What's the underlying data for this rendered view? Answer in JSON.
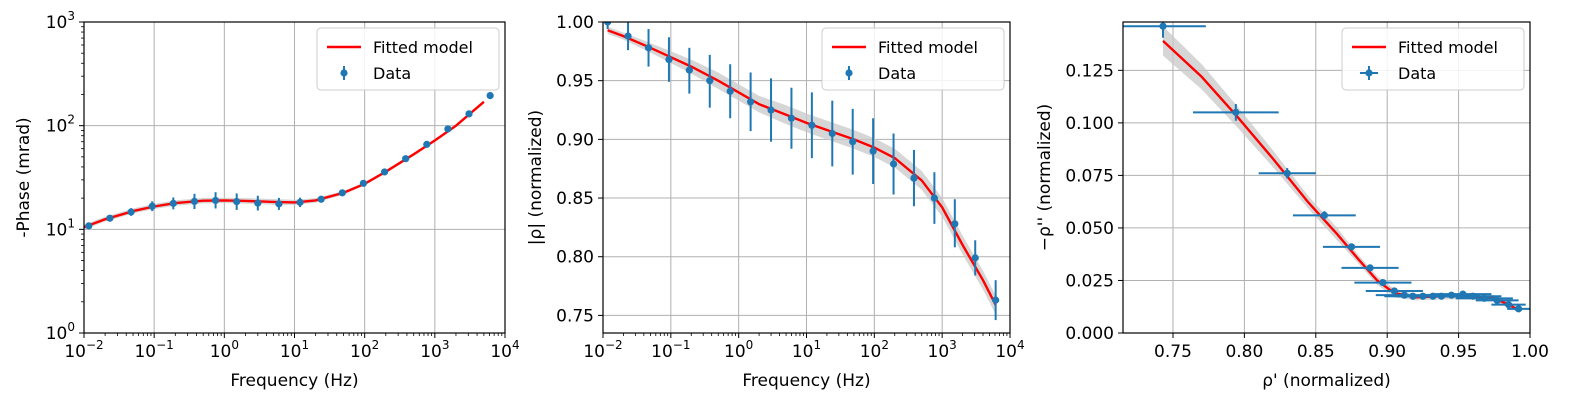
{
  "colors": {
    "model": "#ff0000",
    "data": "#1f77b4",
    "band": "#c8c8c8",
    "grid": "#b0b0b0"
  },
  "chart_data": [
    {
      "type": "line",
      "xlabel": "Frequency (Hz)",
      "ylabel": "-Phase (mrad)",
      "xscale": "log",
      "yscale": "log",
      "xlim": [
        0.01,
        10000
      ],
      "ylim": [
        1,
        1000
      ],
      "xticks": [
        {
          "v": 0.01,
          "base": "10",
          "exp": "−2"
        },
        {
          "v": 0.1,
          "base": "10",
          "exp": "−1"
        },
        {
          "v": 1,
          "base": "10",
          "exp": "0"
        },
        {
          "v": 10,
          "base": "10",
          "exp": "1"
        },
        {
          "v": 100,
          "base": "10",
          "exp": "2"
        },
        {
          "v": 1000,
          "base": "10",
          "exp": "3"
        },
        {
          "v": 10000,
          "base": "10",
          "exp": "4"
        }
      ],
      "yticks": [
        {
          "v": 1,
          "base": "10",
          "exp": "0"
        },
        {
          "v": 10,
          "base": "10",
          "exp": "1"
        },
        {
          "v": 100,
          "base": "10",
          "exp": "2"
        },
        {
          "v": 1000,
          "base": "10",
          "exp": "3"
        }
      ],
      "grid": true,
      "legend_position": "top-right",
      "legend": [
        "Fitted model",
        "Data"
      ],
      "series": [
        {
          "name": "Fitted model",
          "kind": "line",
          "x": [
            0.01,
            0.02,
            0.05,
            0.1,
            0.2,
            0.5,
            1,
            2,
            5,
            10,
            20,
            50,
            100,
            200,
            500,
            1000,
            2000,
            5000
          ],
          "y": [
            10.5,
            12.5,
            15,
            16.6,
            17.9,
            18.9,
            19.0,
            18.8,
            18.4,
            18.2,
            19.0,
            22.5,
            27.5,
            36,
            53,
            72,
            100,
            170
          ],
          "band_lo": [
            9.9,
            11.9,
            14.2,
            15.7,
            16.9,
            17.8,
            17.9,
            17.7,
            17.3,
            17.2,
            18.1,
            21.6,
            26.6,
            34.8,
            51.5,
            70,
            97,
            165
          ],
          "band_hi": [
            11.1,
            13.2,
            15.9,
            17.6,
            19.0,
            20.1,
            20.2,
            20.0,
            19.6,
            19.3,
            20.0,
            23.5,
            28.5,
            37.3,
            54.5,
            74,
            103,
            175
          ]
        },
        {
          "name": "Data",
          "kind": "errorbar",
          "x": [
            0.0117,
            0.0234,
            0.0469,
            0.0938,
            0.1875,
            0.375,
            0.75,
            1.5,
            3,
            6,
            12,
            24,
            48,
            96,
            192,
            384,
            768,
            1536,
            3072,
            6144
          ],
          "y": [
            10.8,
            12.8,
            14.7,
            16.7,
            17.8,
            18.6,
            19.0,
            18.5,
            17.9,
            17.6,
            18.2,
            19.5,
            22.5,
            27.8,
            35.8,
            48,
            66,
            93,
            130,
            195
          ],
          "ylo": [
            10.2,
            12.1,
            13.5,
            15.0,
            15.6,
            15.7,
            15.9,
            15.4,
            15.2,
            15.4,
            16.4,
            18.6,
            21.8,
            27.0,
            34.8,
            46.8,
            64.5,
            91,
            127,
            191
          ],
          "yhi": [
            11.4,
            13.5,
            16.0,
            18.6,
            20.3,
            22.0,
            22.8,
            22.2,
            21.1,
            20.1,
            20.2,
            20.5,
            23.3,
            28.6,
            36.8,
            49.2,
            67.5,
            95,
            133,
            199
          ]
        }
      ]
    },
    {
      "type": "line",
      "xlabel": "Frequency (Hz)",
      "ylabel": "|ρ| (normalized)",
      "xscale": "log",
      "yscale": "linear",
      "xlim": [
        0.01,
        10000
      ],
      "ylim": [
        0.735,
        1.0
      ],
      "xticks": [
        {
          "v": 0.01,
          "base": "10",
          "exp": "−2"
        },
        {
          "v": 0.1,
          "base": "10",
          "exp": "−1"
        },
        {
          "v": 1,
          "base": "10",
          "exp": "0"
        },
        {
          "v": 10,
          "base": "10",
          "exp": "1"
        },
        {
          "v": 100,
          "base": "10",
          "exp": "2"
        },
        {
          "v": 1000,
          "base": "10",
          "exp": "3"
        },
        {
          "v": 10000,
          "base": "10",
          "exp": "4"
        }
      ],
      "yticks": [
        {
          "v": 0.75,
          "text": "0.75"
        },
        {
          "v": 0.8,
          "text": "0.80"
        },
        {
          "v": 0.85,
          "text": "0.85"
        },
        {
          "v": 0.9,
          "text": "0.90"
        },
        {
          "v": 0.95,
          "text": "0.95"
        },
        {
          "v": 1.0,
          "text": "1.00"
        }
      ],
      "grid": true,
      "legend_position": "top-right",
      "legend": [
        "Fitted model",
        "Data"
      ],
      "series": [
        {
          "name": "Fitted model",
          "kind": "line",
          "x": [
            0.0117,
            0.02,
            0.05,
            0.1,
            0.2,
            0.5,
            1,
            2,
            5,
            10,
            20,
            50,
            100,
            200,
            500,
            1000,
            2000,
            4000,
            6144
          ],
          "y": [
            0.993,
            0.988,
            0.978,
            0.97,
            0.962,
            0.95,
            0.94,
            0.93,
            0.921,
            0.914,
            0.908,
            0.9,
            0.893,
            0.884,
            0.865,
            0.842,
            0.81,
            0.78,
            0.759
          ],
          "band_lo": [
            0.99,
            0.985,
            0.974,
            0.965,
            0.956,
            0.943,
            0.933,
            0.923,
            0.913,
            0.906,
            0.9,
            0.892,
            0.885,
            0.876,
            0.857,
            0.834,
            0.802,
            0.772,
            0.751
          ],
          "band_hi": [
            0.996,
            0.991,
            0.982,
            0.975,
            0.968,
            0.957,
            0.947,
            0.937,
            0.929,
            0.922,
            0.916,
            0.908,
            0.901,
            0.892,
            0.873,
            0.85,
            0.818,
            0.788,
            0.767
          ]
        },
        {
          "name": "Data",
          "kind": "errorbar",
          "x": [
            0.0117,
            0.0234,
            0.0469,
            0.0938,
            0.1875,
            0.375,
            0.75,
            1.5,
            3,
            6,
            12,
            24,
            48,
            96,
            192,
            384,
            768,
            1536,
            3072,
            6144
          ],
          "y": [
            1.0,
            0.988,
            0.978,
            0.968,
            0.959,
            0.95,
            0.941,
            0.932,
            0.925,
            0.918,
            0.912,
            0.905,
            0.898,
            0.89,
            0.879,
            0.867,
            0.85,
            0.828,
            0.799,
            0.763
          ],
          "ylo": [
            0.994,
            0.976,
            0.962,
            0.949,
            0.939,
            0.927,
            0.918,
            0.907,
            0.898,
            0.892,
            0.884,
            0.877,
            0.87,
            0.862,
            0.853,
            0.843,
            0.828,
            0.808,
            0.784,
            0.746
          ],
          "yhi": [
            1.006,
            1.0,
            0.994,
            0.987,
            0.978,
            0.972,
            0.964,
            0.957,
            0.952,
            0.944,
            0.94,
            0.933,
            0.926,
            0.918,
            0.905,
            0.891,
            0.872,
            0.849,
            0.814,
            0.78
          ]
        }
      ]
    },
    {
      "type": "line",
      "xlabel": "ρ' (normalized)",
      "ylabel": "−ρ'' (normalized)",
      "xscale": "linear",
      "yscale": "linear",
      "xlim": [
        0.715,
        1.0
      ],
      "ylim": [
        0.0,
        0.148
      ],
      "xticks": [
        {
          "v": 0.75,
          "text": "0.75"
        },
        {
          "v": 0.8,
          "text": "0.80"
        },
        {
          "v": 0.85,
          "text": "0.85"
        },
        {
          "v": 0.9,
          "text": "0.90"
        },
        {
          "v": 0.95,
          "text": "0.95"
        },
        {
          "v": 1.0,
          "text": "1.00"
        }
      ],
      "yticks": [
        {
          "v": 0.0,
          "text": "0.000"
        },
        {
          "v": 0.025,
          "text": "0.025"
        },
        {
          "v": 0.05,
          "text": "0.050"
        },
        {
          "v": 0.075,
          "text": "0.075"
        },
        {
          "v": 0.1,
          "text": "0.100"
        },
        {
          "v": 0.125,
          "text": "0.125"
        }
      ],
      "grid": true,
      "legend_position": "top-right",
      "legend": [
        "Fitted model",
        "Data"
      ],
      "series": [
        {
          "name": "Fitted model",
          "kind": "line",
          "x": [
            0.743,
            0.77,
            0.795,
            0.82,
            0.845,
            0.865,
            0.88,
            0.893,
            0.905,
            0.92,
            0.94,
            0.96,
            0.975,
            0.985,
            0.993
          ],
          "y": [
            0.139,
            0.122,
            0.103,
            0.083,
            0.062,
            0.047,
            0.035,
            0.025,
            0.019,
            0.017,
            0.0175,
            0.0175,
            0.0165,
            0.0135,
            0.0105
          ],
          "band_lo": [
            0.132,
            0.116,
            0.098,
            0.079,
            0.059,
            0.044,
            0.033,
            0.023,
            0.017,
            0.0155,
            0.016,
            0.016,
            0.015,
            0.012,
            0.0095
          ],
          "band_hi": [
            0.146,
            0.128,
            0.108,
            0.087,
            0.065,
            0.05,
            0.037,
            0.027,
            0.021,
            0.0185,
            0.019,
            0.019,
            0.018,
            0.015,
            0.0115
          ]
        },
        {
          "name": "Data",
          "kind": "errorbar-xy",
          "x": [
            0.743,
            0.794,
            0.83,
            0.856,
            0.875,
            0.888,
            0.897,
            0.905,
            0.912,
            0.918,
            0.925,
            0.932,
            0.938,
            0.945,
            0.953,
            0.96,
            0.968,
            0.977,
            0.985,
            0.992
          ],
          "y": [
            0.146,
            0.105,
            0.076,
            0.056,
            0.041,
            0.031,
            0.024,
            0.02,
            0.018,
            0.0175,
            0.0175,
            0.0175,
            0.0175,
            0.018,
            0.0185,
            0.0175,
            0.0165,
            0.0155,
            0.0135,
            0.0115
          ],
          "xerr": [
            0.03,
            0.03,
            0.02,
            0.022,
            0.02,
            0.02,
            0.02,
            0.02,
            0.02,
            0.02,
            0.02,
            0.02,
            0.02,
            0.02,
            0.02,
            0.02,
            0.02,
            0.015,
            0.012,
            0.008
          ],
          "yerr": [
            0.0055,
            0.004,
            0.0025,
            0.002,
            0.0015,
            0.001,
            0.001,
            0.001,
            0.0008,
            0.0007,
            0.0007,
            0.0007,
            0.0007,
            0.0007,
            0.0007,
            0.0007,
            0.0006,
            0.0006,
            0.0006,
            0.0006
          ]
        }
      ]
    }
  ]
}
